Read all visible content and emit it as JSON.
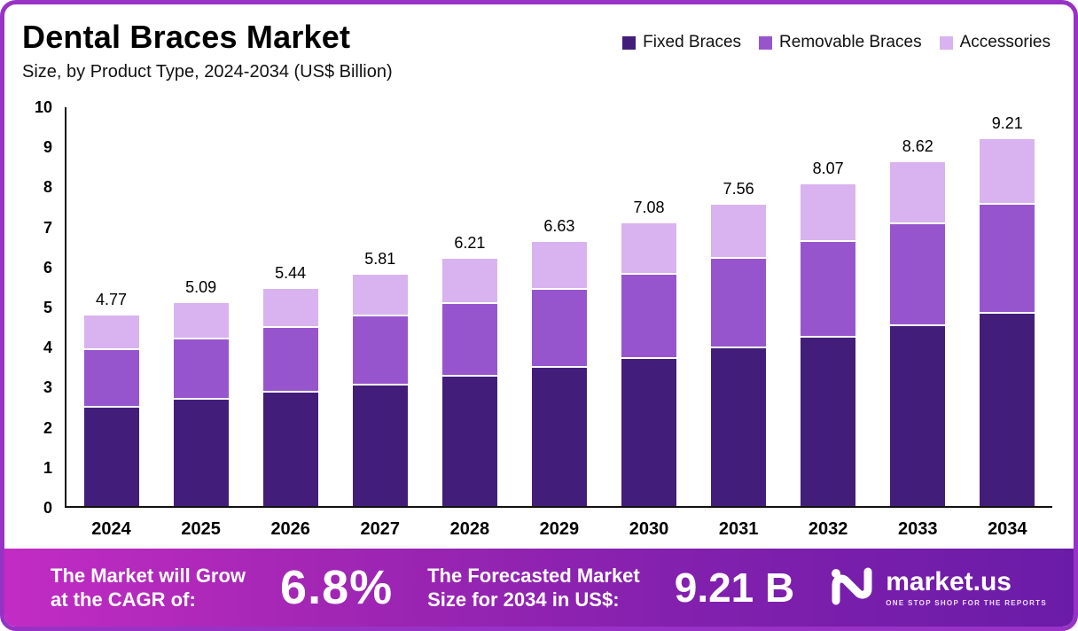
{
  "chart_data": {
    "type": "bar",
    "stacked": true,
    "title": "Dental Braces Market",
    "subtitle": "Size, by Product Type, 2024-2034 (US$ Billion)",
    "categories": [
      "2024",
      "2025",
      "2026",
      "2027",
      "2028",
      "2029",
      "2030",
      "2031",
      "2032",
      "2033",
      "2034"
    ],
    "series": [
      {
        "name": "Fixed Braces",
        "color": "#421E7A",
        "values": [
          2.5,
          2.7,
          2.88,
          3.07,
          3.28,
          3.5,
          3.74,
          4.0,
          4.27,
          4.56,
          4.87
        ]
      },
      {
        "name": "Removable Braces",
        "color": "#9755CD",
        "values": [
          1.45,
          1.52,
          1.63,
          1.74,
          1.84,
          1.96,
          2.1,
          2.24,
          2.39,
          2.55,
          2.73
        ]
      },
      {
        "name": "Accessories",
        "color": "#D9B3EF",
        "values": [
          0.82,
          0.87,
          0.93,
          1.0,
          1.09,
          1.17,
          1.24,
          1.32,
          1.41,
          1.51,
          1.61
        ]
      }
    ],
    "totals": [
      4.77,
      5.09,
      5.44,
      5.81,
      6.21,
      6.63,
      7.08,
      7.56,
      8.07,
      8.62,
      9.21
    ],
    "ylim": [
      0,
      10
    ],
    "y_ticks": [
      0,
      1,
      2,
      3,
      4,
      5,
      6,
      7,
      8,
      9,
      10
    ],
    "grid": false,
    "legend_position": "top-right"
  },
  "banner": {
    "left_line1": "The Market will Grow",
    "left_line2": "at the CAGR of:",
    "cagr": "6.8%",
    "right_line1": "The Forecasted Market",
    "right_line2": "Size for 2034 in US$:",
    "forecast": "9.21 B",
    "logo_text": "market.us",
    "logo_tagline": "ONE STOP SHOP FOR THE REPORTS"
  }
}
